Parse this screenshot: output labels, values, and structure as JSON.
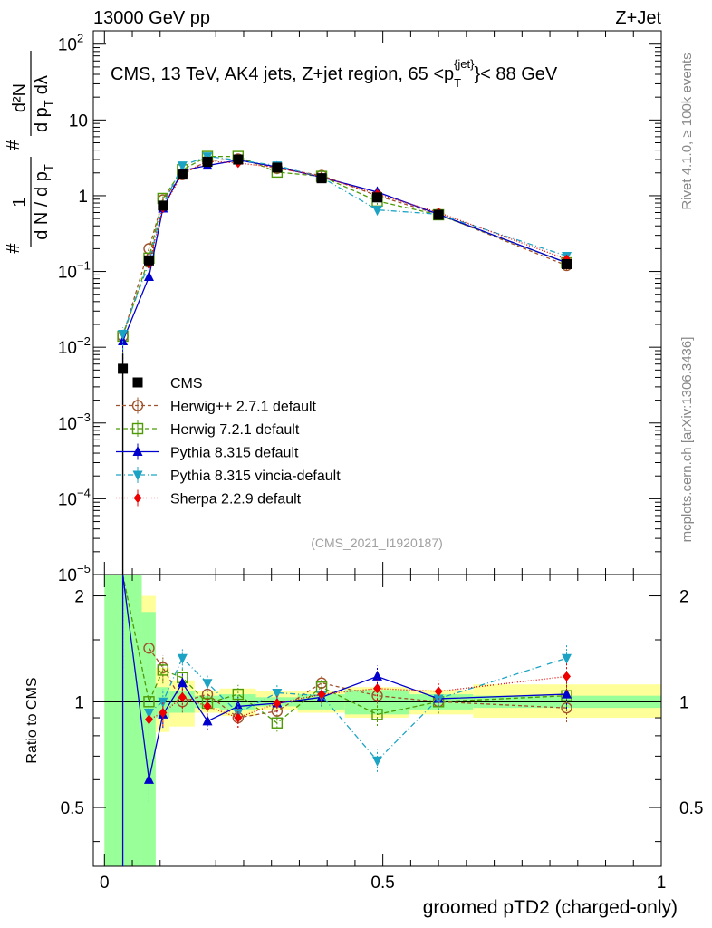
{
  "header": {
    "left": "13000 GeV pp",
    "right": "Z+Jet",
    "side_rivet": "Rivet 4.1.0, ≥ 100k events",
    "side_mcplots": "mcplots.cern.ch [arXiv:1306.3436]",
    "analysis_tag": "(CMS_2021_I1920187)"
  },
  "colors": {
    "data": "#000000",
    "herwigpp": "#a0522d",
    "herwig7": "#4e9a06",
    "pythia": "#0000cc",
    "vincia": "#1ca3c4",
    "sherpa": "#ee0000",
    "band_inner": "#99ff99",
    "band_outer": "#ffff99"
  },
  "chart_data": [
    {
      "type": "line",
      "panel": "main",
      "title": "CMS, 13 TeV, AK4 jets, Z+jet region, 65 <p_T^{jet}< 88 GeV",
      "title_parts": {
        "prefix": "CMS, 13 TeV, AK4 jets, Z+jet region, 65 <p",
        "sub": "T",
        "sup": "{jet}",
        "suffix": "}< 88 GeV"
      },
      "ylabel_parts": {
        "frac1_num": "1",
        "frac1_den": "d N / d p",
        "hash": "#",
        "frac2_num": "d²N",
        "frac2_den_a": "d p",
        "frac2_den_b": "dλ",
        "sub": "T"
      },
      "yscale": "log",
      "ylim": [
        1e-05,
        150
      ],
      "xlim": [
        -0.02,
        1.0
      ],
      "y_ticks": [
        {
          "v": 1e-05,
          "b": "10",
          "e": "−5"
        },
        {
          "v": 0.0001,
          "b": "10",
          "e": "−4"
        },
        {
          "v": 0.001,
          "b": "10",
          "e": "−3"
        },
        {
          "v": 0.01,
          "b": "10",
          "e": "−2"
        },
        {
          "v": 0.1,
          "b": "10",
          "e": "−1"
        },
        {
          "v": 1,
          "b": "1",
          "e": ""
        },
        {
          "v": 10,
          "b": "10",
          "e": ""
        },
        {
          "v": 100,
          "b": "10",
          "e": "2"
        }
      ],
      "x": [
        0.033,
        0.08,
        0.105,
        0.14,
        0.185,
        0.24,
        0.31,
        0.39,
        0.49,
        0.6,
        0.83
      ],
      "xerr": [
        0.033,
        0.0125,
        0.0125,
        0.0225,
        0.0225,
        0.0325,
        0.0375,
        0.0425,
        0.0575,
        0.0575,
        0.17
      ],
      "data": {
        "name": "CMS",
        "values": [
          0.0052,
          0.14,
          0.74,
          1.9,
          2.8,
          3.0,
          2.35,
          1.7,
          0.95,
          0.56,
          0.125
        ],
        "err_low": [
          0.0052,
          0.03,
          0.08,
          0.15,
          0.15,
          0.2,
          0.12,
          0.1,
          0.08,
          0.05,
          0.015
        ],
        "err_high": [
          0.003,
          0.03,
          0.08,
          0.15,
          0.15,
          0.2,
          0.12,
          0.1,
          0.08,
          0.05,
          0.015
        ]
      },
      "series": [
        {
          "name": "Herwig++ 2.7.1 default",
          "key": "herwigpp",
          "marker": "circle-open",
          "dash": "4,3",
          "values": [
            0.014,
            0.2,
            0.88,
            1.9,
            2.9,
            3.05,
            2.3,
            1.85,
            1.0,
            0.57,
            0.12
          ]
        },
        {
          "name": "Herwig 7.2.1 default",
          "key": "herwig7",
          "marker": "square-open",
          "dash": "5,3",
          "values": [
            0.014,
            0.15,
            0.92,
            2.2,
            3.3,
            3.3,
            2.05,
            1.8,
            0.85,
            0.56,
            0.13
          ]
        },
        {
          "name": "Pythia 8.315 default",
          "key": "pythia",
          "marker": "triangle-up",
          "dash": "",
          "values": [
            0.012,
            0.085,
            0.68,
            2.15,
            2.5,
            2.95,
            2.4,
            1.75,
            1.12,
            0.57,
            0.13
          ]
        },
        {
          "name": "Pythia 8.315 vincia-default",
          "key": "vincia",
          "marker": "triangle-down",
          "dash": "6,3,1,3",
          "values": [
            0.015,
            0.13,
            0.75,
            2.5,
            3.3,
            2.95,
            2.5,
            1.75,
            0.65,
            0.57,
            0.16
          ]
        },
        {
          "name": "Sherpa 2.2.9 default",
          "key": "sherpa",
          "marker": "diamond",
          "dash": "1,2",
          "values": [
            null,
            0.125,
            0.69,
            1.95,
            2.85,
            2.7,
            2.35,
            1.78,
            1.05,
            0.6,
            0.145
          ]
        }
      ]
    },
    {
      "type": "line",
      "panel": "ratio",
      "ylabel": "Ratio to CMS",
      "xlabel": "groomed pTD2 (charged-only)",
      "ylim": [
        0.34,
        2.3
      ],
      "xlim": [
        -0.02,
        1.0
      ],
      "y_ticks": [
        0.5,
        1,
        2
      ],
      "x_ticks": [
        0,
        0.5,
        1
      ],
      "x_tick_labels": [
        "0",
        "0.5",
        "1"
      ],
      "y_tick_labels": [
        "0.5",
        "1",
        "2"
      ],
      "band_bins": [
        [
          0.0,
          0.067
        ],
        [
          0.067,
          0.092
        ],
        [
          0.092,
          0.117
        ],
        [
          0.117,
          0.162
        ],
        [
          0.162,
          0.207
        ],
        [
          0.207,
          0.272
        ],
        [
          0.272,
          0.347
        ],
        [
          0.347,
          0.432
        ],
        [
          0.432,
          0.547
        ],
        [
          0.547,
          0.662
        ],
        [
          0.662,
          1.0
        ]
      ],
      "band_inner": [
        [
          0.0,
          2.6
        ],
        [
          0.3,
          1.8
        ],
        [
          0.9,
          1.1
        ],
        [
          0.93,
          1.07
        ],
        [
          0.96,
          1.04
        ],
        [
          0.95,
          1.05
        ],
        [
          0.97,
          1.03
        ],
        [
          0.95,
          1.05
        ],
        [
          0.92,
          1.08
        ],
        [
          0.95,
          1.05
        ],
        [
          0.96,
          1.04
        ]
      ],
      "band_outer": [
        [
          0.0,
          2.6
        ],
        [
          0.3,
          2.0
        ],
        [
          0.82,
          1.25
        ],
        [
          0.85,
          1.15
        ],
        [
          0.93,
          1.07
        ],
        [
          0.91,
          1.09
        ],
        [
          0.95,
          1.07
        ],
        [
          0.93,
          1.07
        ],
        [
          0.9,
          1.1
        ],
        [
          0.92,
          1.08
        ],
        [
          0.9,
          1.12
        ]
      ],
      "series": [
        {
          "key": "herwigpp",
          "marker": "circle-open",
          "dash": "4,3",
          "values": [
            null,
            1.42,
            1.25,
            1.0,
            1.05,
            0.9,
            0.94,
            1.13,
            1.04,
            1.0,
            0.96
          ]
        },
        {
          "key": "herwig7",
          "marker": "square-open",
          "dash": "5,3",
          "values": [
            2.65,
            1.0,
            1.23,
            1.17,
            0.99,
            1.05,
            0.87,
            1.1,
            0.92,
            1.0,
            1.04
          ]
        },
        {
          "key": "pythia",
          "marker": "triangle-up",
          "dash": "",
          "values": [
            2.65,
            0.6,
            0.92,
            1.13,
            0.88,
            0.97,
            0.99,
            1.03,
            1.18,
            1.02,
            1.05
          ]
        },
        {
          "key": "vincia",
          "marker": "triangle-down",
          "dash": "6,3,1,3",
          "values": [
            null,
            0.93,
            1.0,
            1.33,
            1.13,
            0.93,
            1.06,
            1.04,
            0.68,
            1.02,
            1.33
          ]
        },
        {
          "key": "sherpa",
          "marker": "diamond",
          "dash": "1,2",
          "values": [
            null,
            0.89,
            0.93,
            1.03,
            0.97,
            0.9,
            0.99,
            1.05,
            1.09,
            1.07,
            1.18
          ]
        }
      ]
    }
  ]
}
